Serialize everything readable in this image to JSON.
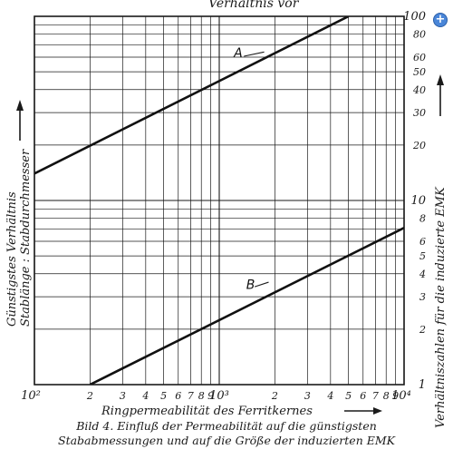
{
  "header_fragment": "Verhältnis vor",
  "caption": {
    "line1": "Bild 4. Einfluß der Permeabilität auf die günstigsten",
    "line2": "Stababmessungen und auf die Größe der induzierten EMK"
  },
  "zoom_button": {
    "label": "+"
  },
  "chart_data": {
    "type": "line",
    "x_scale": "log",
    "y_scale": "log",
    "xlim": [
      100,
      10000
    ],
    "ylim_left": [
      3,
      300
    ],
    "ylim_right": [
      1,
      100
    ],
    "xlabel": "Ringpermeabilität des Ferritkernes",
    "ylabel_left_line1": "Günstigstes Verhältnis",
    "ylabel_left_line2": "Stablänge : Stabdurchmesser",
    "ylabel_right": "Verhältniszahlen für die induzierte EMK",
    "x_tick_labels": [
      {
        "value": 100,
        "label": "10²"
      },
      {
        "value": 200,
        "label": "2"
      },
      {
        "value": 300,
        "label": "3"
      },
      {
        "value": 400,
        "label": "4"
      },
      {
        "value": 500,
        "label": "5"
      },
      {
        "value": 600,
        "label": "6"
      },
      {
        "value": 700,
        "label": "7"
      },
      {
        "value": 800,
        "label": "8"
      },
      {
        "value": 900,
        "label": "9"
      },
      {
        "value": 1000,
        "label": "10³"
      },
      {
        "value": 2000,
        "label": "2"
      },
      {
        "value": 3000,
        "label": "3"
      },
      {
        "value": 4000,
        "label": "4"
      },
      {
        "value": 5000,
        "label": "5"
      },
      {
        "value": 6000,
        "label": "6"
      },
      {
        "value": 7000,
        "label": "7"
      },
      {
        "value": 8000,
        "label": "8"
      },
      {
        "value": 9000,
        "label": "9"
      },
      {
        "value": 10000,
        "label": "10⁴"
      }
    ],
    "y_right_tick_labels": [
      {
        "value": 1,
        "label": "1"
      },
      {
        "value": 2,
        "label": "2"
      },
      {
        "value": 3,
        "label": "3"
      },
      {
        "value": 4,
        "label": "4"
      },
      {
        "value": 5,
        "label": "5"
      },
      {
        "value": 6,
        "label": "6"
      },
      {
        "value": 8,
        "label": "8"
      },
      {
        "value": 10,
        "label": "10"
      },
      {
        "value": 20,
        "label": "20"
      },
      {
        "value": 30,
        "label": "30"
      },
      {
        "value": 40,
        "label": "40"
      },
      {
        "value": 50,
        "label": "50"
      },
      {
        "value": 60,
        "label": "60"
      },
      {
        "value": 80,
        "label": "80"
      },
      {
        "value": 100,
        "label": "100"
      }
    ],
    "series": [
      {
        "name": "A",
        "x": [
          100,
          5000
        ],
        "y_right": [
          14,
          100
        ]
      },
      {
        "name": "B",
        "x": [
          200,
          10000
        ],
        "y_right": [
          1,
          7.1
        ]
      }
    ]
  }
}
